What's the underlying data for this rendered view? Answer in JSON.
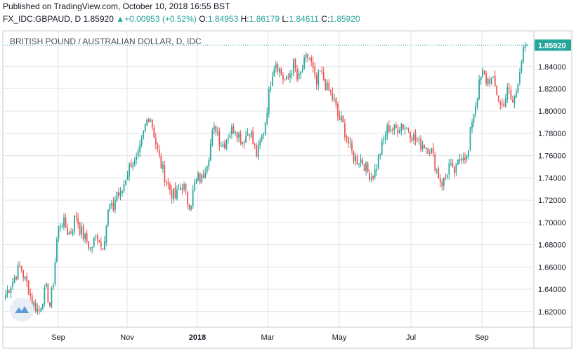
{
  "header": {
    "published": "Published on TradingView.com, October 10, 2018 16:55 BST",
    "symbol": "FX_IDC:GBPAUD, D",
    "last": "1.85920",
    "change": "+0.00953 (+0.52%)",
    "open_label": "O:",
    "open": "1.84953",
    "high_label": "H:",
    "high": "1.86179",
    "low_label": "L:",
    "low": "1.84611",
    "close_label": "C:",
    "close": "1.85920"
  },
  "chart_title": "BRITISH POUND / AUSTRALIAN DOLLAR, D, IDC",
  "colors": {
    "up": "#26a69a",
    "down": "#ef5350",
    "grid": "#e1e3ea",
    "price_line": "#26a69a",
    "axis_text": "#131722"
  },
  "chart_data": {
    "type": "candlestick",
    "title": "BRITISH POUND / AUSTRALIAN DOLLAR, D, IDC",
    "x_tick_labels": [
      "Sep",
      "Nov",
      "2018",
      "Mar",
      "May",
      "Jul",
      "Sep"
    ],
    "y_tick_labels": [
      "1.62000",
      "1.64000",
      "1.66000",
      "1.68000",
      "1.70000",
      "1.72000",
      "1.74000",
      "1.76000",
      "1.78000",
      "1.80000",
      "1.82000",
      "1.84000"
    ],
    "last_price_label": "1.85920",
    "ylim": [
      1.606,
      1.872
    ],
    "grid": true,
    "close_path": [
      1.635,
      1.642,
      1.648,
      1.655,
      1.662,
      1.65,
      1.643,
      1.63,
      1.625,
      1.62,
      1.632,
      1.64,
      1.625,
      1.65,
      1.69,
      1.702,
      1.698,
      1.69,
      1.694,
      1.708,
      1.695,
      1.688,
      1.683,
      1.676,
      1.684,
      1.69,
      1.676,
      1.692,
      1.716,
      1.71,
      1.728,
      1.722,
      1.735,
      1.745,
      1.755,
      1.752,
      1.76,
      1.775,
      1.79,
      1.798,
      1.782,
      1.765,
      1.752,
      1.742,
      1.733,
      1.726,
      1.722,
      1.73,
      1.735,
      1.72,
      1.716,
      1.732,
      1.74,
      1.738,
      1.75,
      1.762,
      1.78,
      1.786,
      1.772,
      1.77,
      1.778,
      1.782,
      1.786,
      1.779,
      1.773,
      1.778,
      1.784,
      1.77,
      1.76,
      1.773,
      1.785,
      1.81,
      1.834,
      1.845,
      1.838,
      1.83,
      1.826,
      1.835,
      1.843,
      1.826,
      1.835,
      1.845,
      1.85,
      1.838,
      1.822,
      1.835,
      1.829,
      1.82,
      1.815,
      1.807,
      1.794,
      1.79,
      1.78,
      1.768,
      1.76,
      1.756,
      1.757,
      1.752,
      1.745,
      1.742,
      1.746,
      1.76,
      1.77,
      1.783,
      1.786,
      1.783,
      1.784,
      1.789,
      1.786,
      1.784,
      1.778,
      1.774,
      1.77,
      1.771,
      1.768,
      1.766,
      1.754,
      1.743,
      1.735,
      1.74,
      1.752,
      1.744,
      1.748,
      1.76,
      1.762,
      1.756,
      1.79,
      1.804,
      1.822,
      1.834,
      1.827,
      1.829,
      1.825,
      1.815,
      1.803,
      1.81,
      1.82,
      1.806,
      1.815,
      1.838,
      1.852,
      1.859
    ]
  }
}
